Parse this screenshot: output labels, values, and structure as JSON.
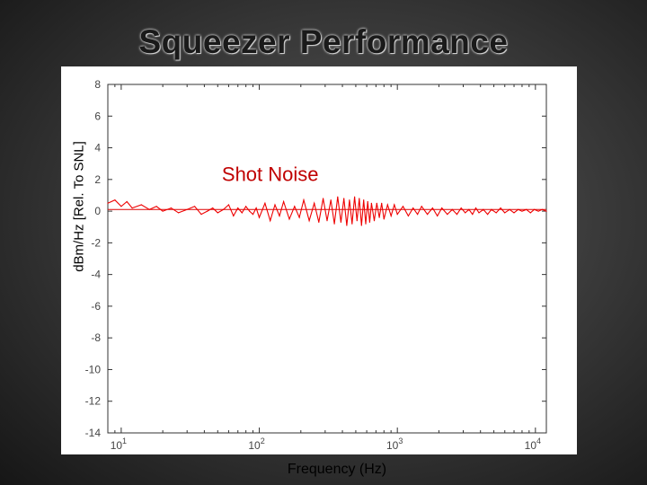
{
  "slide": {
    "title": "Squeezer Performance"
  },
  "chart_data": {
    "type": "line",
    "title": "",
    "xlabel": "Frequency (Hz)",
    "ylabel": "dBm/Hz [Rel. To SNL]",
    "x_scale": "log",
    "xlim": [
      8,
      12000
    ],
    "ylim": [
      -14,
      8
    ],
    "x_ticks": [
      {
        "value": 10,
        "base": "10",
        "exp": "1"
      },
      {
        "value": 100,
        "base": "10",
        "exp": "2"
      },
      {
        "value": 1000,
        "base": "10",
        "exp": "3"
      },
      {
        "value": 10000,
        "base": "10",
        "exp": "4"
      }
    ],
    "y_ticks": [
      8,
      6,
      4,
      2,
      0,
      -2,
      -4,
      -6,
      -8,
      -10,
      -12,
      -14
    ],
    "grid": false,
    "annotations": [
      {
        "text": "Shot Noise",
        "x": 120,
        "y": 1.9,
        "color": "#cc0000"
      }
    ],
    "series": [
      {
        "color": "#dd0000",
        "x": [
          8,
          12000
        ],
        "y": [
          0.1,
          0.1
        ],
        "style": "reference"
      },
      {
        "color": "#ee0000",
        "style": "noisy",
        "x": [
          8,
          9,
          10,
          11,
          12,
          14,
          16,
          18,
          20,
          23,
          26,
          30,
          34,
          38,
          42,
          46,
          50,
          55,
          60,
          65,
          70,
          75,
          80,
          85,
          90,
          95,
          100,
          110,
          120,
          130,
          140,
          150,
          165,
          180,
          195,
          210,
          230,
          250,
          270,
          290,
          310,
          330,
          350,
          370,
          390,
          410,
          430,
          450,
          470,
          490,
          510,
          530,
          550,
          570,
          590,
          610,
          630,
          650,
          680,
          710,
          740,
          770,
          800,
          850,
          900,
          950,
          1000,
          1100,
          1200,
          1300,
          1400,
          1500,
          1650,
          1800,
          1950,
          2100,
          2300,
          2500,
          2700,
          2900,
          3100,
          3300,
          3500,
          3700,
          3900,
          4200,
          4500,
          4800,
          5200,
          5600,
          6000,
          6500,
          7000,
          7500,
          8000,
          8600,
          9200,
          9800,
          10500,
          11200,
          12000
        ],
        "y": [
          0.5,
          0.7,
          0.3,
          0.6,
          0.2,
          0.4,
          0.1,
          0.3,
          0.0,
          0.2,
          -0.1,
          0.1,
          0.3,
          -0.2,
          0.0,
          0.2,
          -0.1,
          0.1,
          0.4,
          -0.3,
          0.2,
          -0.1,
          0.3,
          0.0,
          -0.2,
          0.2,
          -0.4,
          0.5,
          -0.6,
          0.4,
          -0.3,
          0.6,
          -0.5,
          0.3,
          -0.4,
          0.7,
          -0.6,
          0.5,
          -0.7,
          0.8,
          -0.6,
          0.7,
          -0.8,
          0.9,
          -0.7,
          0.8,
          -0.9,
          0.7,
          -0.8,
          0.9,
          -0.6,
          0.8,
          -0.9,
          0.7,
          -0.8,
          0.6,
          -0.7,
          0.5,
          -0.6,
          0.5,
          -0.4,
          0.5,
          -0.5,
          0.4,
          -0.3,
          0.4,
          -0.2,
          0.3,
          -0.3,
          0.2,
          -0.2,
          0.3,
          -0.2,
          0.2,
          -0.3,
          0.2,
          -0.2,
          0.1,
          -0.2,
          0.2,
          -0.1,
          0.1,
          -0.2,
          0.2,
          -0.1,
          0.1,
          -0.2,
          0.1,
          -0.1,
          0.2,
          -0.1,
          0.1,
          -0.1,
          0.1,
          0.0,
          0.1,
          -0.1,
          0.1,
          0.0,
          0.1,
          0.0
        ]
      }
    ]
  }
}
